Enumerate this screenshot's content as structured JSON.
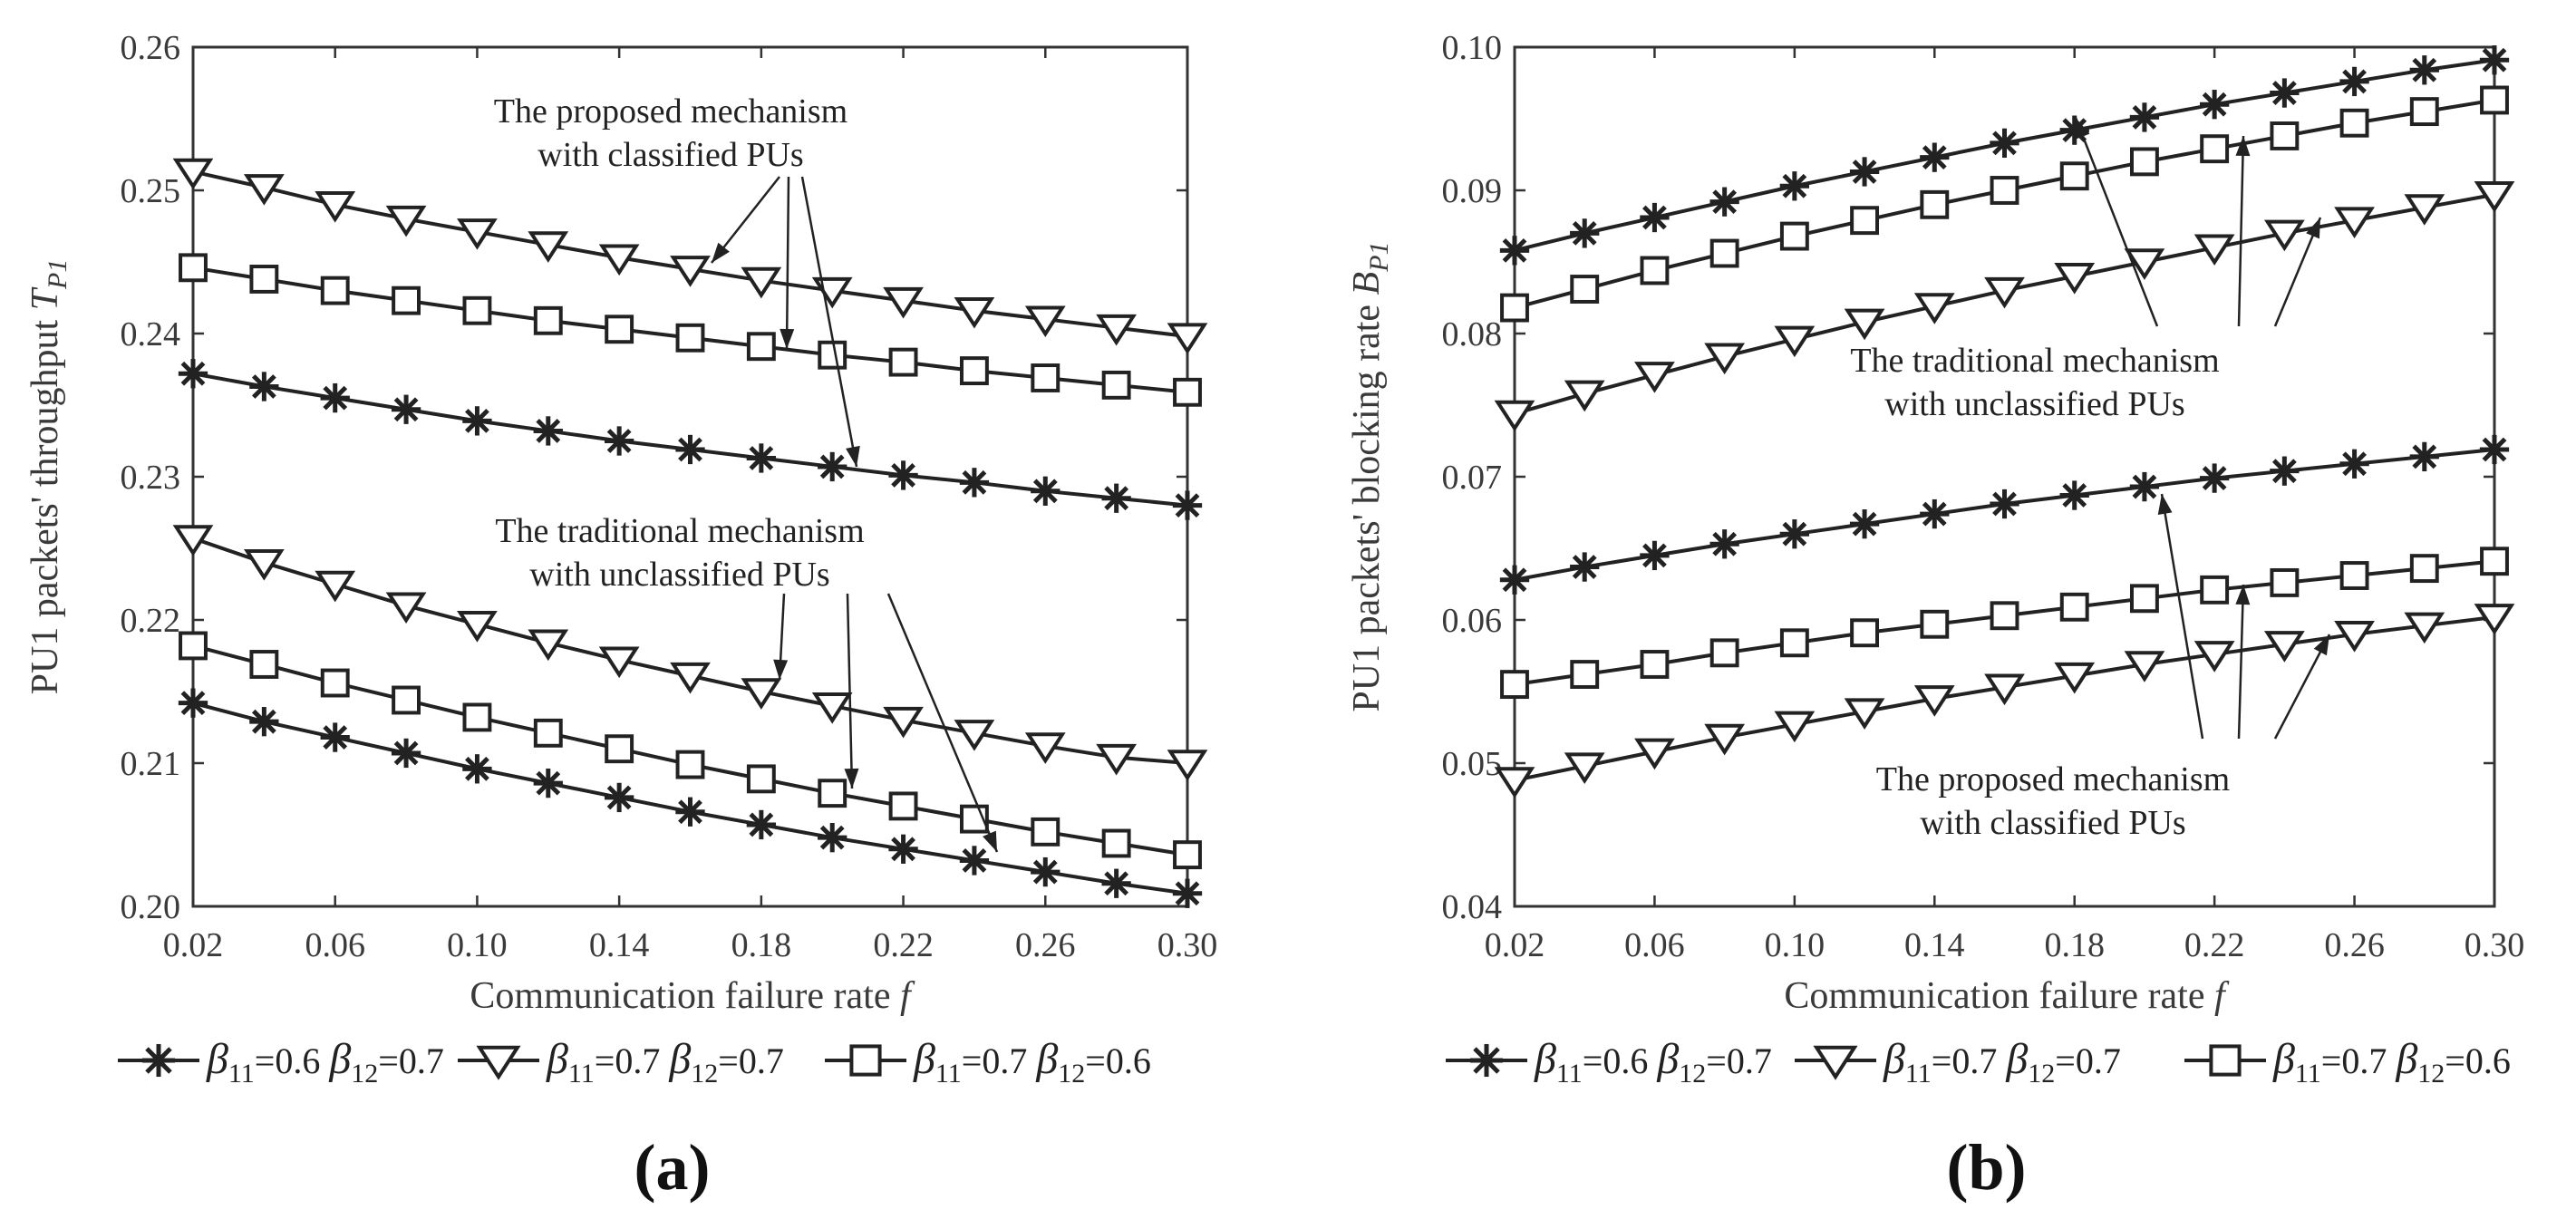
{
  "chart_data": [
    {
      "type": "line",
      "panel_label": "(a)",
      "xlabel": "Communication failure rate",
      "xlabel_var": "f",
      "ylabel": "PU1 packets' throughput",
      "ylabel_var": "T",
      "ylabel_sub": "P1",
      "xlim": [
        0.02,
        0.3
      ],
      "ylim": [
        0.2,
        0.26
      ],
      "xticks": [
        "0.02",
        "0.06",
        "0.10",
        "0.14",
        "0.18",
        "0.22",
        "0.26",
        "0.30"
      ],
      "yticks": [
        "0.20",
        "0.21",
        "0.22",
        "0.23",
        "0.24",
        "0.25",
        "0.26"
      ],
      "x": [
        0.02,
        0.04,
        0.06,
        0.08,
        0.1,
        0.12,
        0.14,
        0.16,
        0.18,
        0.2,
        0.22,
        0.24,
        0.26,
        0.28,
        0.3
      ],
      "series": [
        {
          "name": "proposed β11=0.6 β12=0.7",
          "marker": "star",
          "values": [
            0.2372,
            0.2363,
            0.2355,
            0.2347,
            0.2339,
            0.2332,
            0.2325,
            0.2319,
            0.2313,
            0.2307,
            0.2301,
            0.2296,
            0.229,
            0.2285,
            0.228
          ]
        },
        {
          "name": "proposed β11=0.7 β12=0.7",
          "marker": "triangle",
          "values": [
            0.2513,
            0.2502,
            0.249,
            0.248,
            0.2471,
            0.2462,
            0.2453,
            0.2445,
            0.2437,
            0.243,
            0.2423,
            0.2416,
            0.241,
            0.2404,
            0.2398
          ]
        },
        {
          "name": "proposed β11=0.7 β12=0.6",
          "marker": "square",
          "values": [
            0.2446,
            0.2438,
            0.243,
            0.2423,
            0.2416,
            0.2409,
            0.2403,
            0.2397,
            0.2391,
            0.2385,
            0.238,
            0.2374,
            0.2369,
            0.2364,
            0.2359
          ]
        },
        {
          "name": "traditional β11=0.6 β12=0.7",
          "marker": "star",
          "values": [
            0.2142,
            0.2129,
            0.2118,
            0.2107,
            0.2096,
            0.2086,
            0.2076,
            0.2066,
            0.2057,
            0.2048,
            0.204,
            0.2032,
            0.2024,
            0.2016,
            0.2009
          ]
        },
        {
          "name": "traditional β11=0.7 β12=0.7",
          "marker": "triangle",
          "values": [
            0.2257,
            0.224,
            0.2225,
            0.221,
            0.2197,
            0.2184,
            0.2172,
            0.2161,
            0.215,
            0.214,
            0.213,
            0.2121,
            0.2112,
            0.2104,
            0.21
          ]
        },
        {
          "name": "traditional β11=0.7 β12=0.6",
          "marker": "square",
          "values": [
            0.2182,
            0.2169,
            0.2156,
            0.2144,
            0.2132,
            0.2121,
            0.211,
            0.2099,
            0.2089,
            0.2079,
            0.207,
            0.2061,
            0.2052,
            0.2044,
            0.2036
          ]
        }
      ],
      "annotations": [
        {
          "lines": [
            "The proposed mechanism",
            "with classified PUs"
          ]
        },
        {
          "lines": [
            "The traditional mechanism",
            "with unclassified PUs"
          ]
        }
      ]
    },
    {
      "type": "line",
      "panel_label": "(b)",
      "xlabel": "Communication failure rate",
      "xlabel_var": "f",
      "ylabel": "PU1 packets' blocking rate",
      "ylabel_var": "B",
      "ylabel_sub": "P1",
      "xlim": [
        0.02,
        0.3
      ],
      "ylim": [
        0.04,
        0.1
      ],
      "xticks": [
        "0.02",
        "0.06",
        "0.10",
        "0.14",
        "0.18",
        "0.22",
        "0.26",
        "0.30"
      ],
      "yticks": [
        "0.04",
        "0.05",
        "0.06",
        "0.07",
        "0.08",
        "0.09",
        "0.10"
      ],
      "x": [
        0.02,
        0.04,
        0.06,
        0.08,
        0.1,
        0.12,
        0.14,
        0.16,
        0.18,
        0.2,
        0.22,
        0.24,
        0.26,
        0.28,
        0.3
      ],
      "series": [
        {
          "name": "traditional β11=0.6 β12=0.7",
          "marker": "star",
          "values": [
            0.0858,
            0.087,
            0.0881,
            0.0892,
            0.0903,
            0.0913,
            0.0923,
            0.0933,
            0.0942,
            0.0951,
            0.096,
            0.0968,
            0.0976,
            0.0984,
            0.0991
          ]
        },
        {
          "name": "traditional β11=0.7 β12=0.7",
          "marker": "triangle",
          "values": [
            0.0744,
            0.0758,
            0.0771,
            0.0784,
            0.0796,
            0.0808,
            0.0819,
            0.083,
            0.084,
            0.085,
            0.086,
            0.087,
            0.0879,
            0.0888,
            0.0897
          ]
        },
        {
          "name": "traditional β11=0.7 β12=0.6",
          "marker": "square",
          "values": [
            0.0818,
            0.0831,
            0.0844,
            0.0856,
            0.0868,
            0.0879,
            0.089,
            0.09,
            0.091,
            0.092,
            0.0929,
            0.0938,
            0.0947,
            0.0955,
            0.0963
          ]
        },
        {
          "name": "proposed β11=0.6 β12=0.7",
          "marker": "star",
          "values": [
            0.0628,
            0.0637,
            0.0645,
            0.0653,
            0.066,
            0.0667,
            0.0674,
            0.0681,
            0.0687,
            0.0693,
            0.0699,
            0.0704,
            0.0709,
            0.0714,
            0.0719
          ]
        },
        {
          "name": "proposed β11=0.7 β12=0.7",
          "marker": "triangle",
          "values": [
            0.0488,
            0.0498,
            0.0508,
            0.0518,
            0.0527,
            0.0536,
            0.0545,
            0.0553,
            0.0561,
            0.0569,
            0.0576,
            0.0583,
            0.059,
            0.0596,
            0.0602
          ]
        },
        {
          "name": "proposed β11=0.7 β12=0.6",
          "marker": "square",
          "values": [
            0.0555,
            0.0562,
            0.0569,
            0.0577,
            0.0584,
            0.0591,
            0.0597,
            0.0603,
            0.0609,
            0.0615,
            0.0621,
            0.0626,
            0.0631,
            0.0636,
            0.0641
          ]
        }
      ],
      "annotations": [
        {
          "lines": [
            "The traditional mechanism",
            "with unclassified PUs"
          ]
        },
        {
          "lines": [
            "The proposed mechanism",
            "with classified PUs"
          ]
        }
      ]
    }
  ],
  "legend": [
    {
      "marker": "star",
      "b11": "=0.6",
      "b12": "=0.7"
    },
    {
      "marker": "triangle",
      "b11": "=0.7",
      "b12": "=0.7"
    },
    {
      "marker": "square",
      "b11": "=0.7",
      "b12": "=0.6"
    }
  ],
  "legend_symbol": "β",
  "legend_sub1": "11",
  "legend_sub2": "12"
}
